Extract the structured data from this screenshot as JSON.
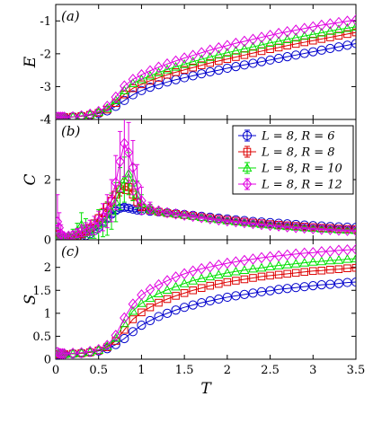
{
  "chart_data": {
    "type": "line",
    "xlabel": "T",
    "xlim": [
      0,
      3.5
    ],
    "xticks": [
      "0",
      "0.5",
      "1",
      "1.5",
      "2",
      "2.5",
      "3",
      "3.5"
    ],
    "xtick_values": [
      0,
      0.5,
      1,
      1.5,
      2,
      2.5,
      3,
      3.5
    ],
    "legend": {
      "placement": "upper right of panel (b)",
      "entries": [
        "L = 8, R = 6",
        "L = 8, R = 8",
        "L = 8, R = 10",
        "L = 8, R = 12"
      ]
    },
    "colors": [
      "#0000cc",
      "#dd0000",
      "#00e000",
      "#e000e0"
    ],
    "markers": [
      "circle",
      "square",
      "triangle",
      "diamond"
    ],
    "panels": [
      {
        "label": "(a)",
        "ylabel": "E",
        "ylim": [
          -4,
          -0.5
        ],
        "yticks": [
          "-1",
          "-2",
          "-3",
          "-4"
        ],
        "ytick_values": [
          -1,
          -2,
          -3,
          -4
        ],
        "x": [
          0.02,
          0.04,
          0.06,
          0.08,
          0.1,
          0.2,
          0.3,
          0.4,
          0.5,
          0.6,
          0.7,
          0.8,
          0.9,
          1.0,
          1.1,
          1.2,
          1.3,
          1.4,
          1.5,
          1.6,
          1.7,
          1.8,
          1.9,
          2.0,
          2.1,
          2.2,
          2.3,
          2.4,
          2.5,
          2.6,
          2.7,
          2.8,
          2.9,
          3.0,
          3.1,
          3.2,
          3.3,
          3.4,
          3.5
        ],
        "series": [
          {
            "name": "R = 6",
            "values": [
              -3.93,
              -3.93,
              -3.93,
              -3.93,
              -3.93,
              -3.92,
              -3.9,
              -3.87,
              -3.82,
              -3.74,
              -3.6,
              -3.42,
              -3.25,
              -3.12,
              -3.02,
              -2.94,
              -2.86,
              -2.79,
              -2.73,
              -2.67,
              -2.61,
              -2.55,
              -2.5,
              -2.44,
              -2.39,
              -2.34,
              -2.29,
              -2.24,
              -2.19,
              -2.14,
              -2.09,
              -2.04,
              -1.99,
              -1.94,
              -1.89,
              -1.84,
              -1.79,
              -1.74,
              -1.69
            ]
          },
          {
            "name": "R = 8",
            "values": [
              -3.93,
              -3.93,
              -3.93,
              -3.93,
              -3.93,
              -3.92,
              -3.9,
              -3.86,
              -3.8,
              -3.7,
              -3.5,
              -3.24,
              -3.05,
              -2.93,
              -2.82,
              -2.73,
              -2.64,
              -2.56,
              -2.49,
              -2.42,
              -2.35,
              -2.28,
              -2.22,
              -2.16,
              -2.1,
              -2.04,
              -1.98,
              -1.92,
              -1.86,
              -1.81,
              -1.75,
              -1.7,
              -1.65,
              -1.6,
              -1.55,
              -1.5,
              -1.45,
              -1.4,
              -1.35
            ]
          },
          {
            "name": "R = 10",
            "values": [
              -3.93,
              -3.93,
              -3.93,
              -3.93,
              -3.93,
              -3.92,
              -3.89,
              -3.85,
              -3.78,
              -3.66,
              -3.42,
              -3.12,
              -2.9,
              -2.78,
              -2.67,
              -2.57,
              -2.48,
              -2.4,
              -2.32,
              -2.24,
              -2.17,
              -2.1,
              -2.03,
              -1.97,
              -1.91,
              -1.85,
              -1.79,
              -1.73,
              -1.67,
              -1.62,
              -1.56,
              -1.51,
              -1.46,
              -1.41,
              -1.36,
              -1.31,
              -1.26,
              -1.22,
              -1.18
            ]
          },
          {
            "name": "R = 12",
            "values": [
              -3.93,
              -3.93,
              -3.93,
              -3.93,
              -3.93,
              -3.92,
              -3.89,
              -3.84,
              -3.76,
              -3.6,
              -3.32,
              -2.98,
              -2.78,
              -2.64,
              -2.52,
              -2.41,
              -2.31,
              -2.22,
              -2.13,
              -2.05,
              -1.97,
              -1.89,
              -1.82,
              -1.75,
              -1.68,
              -1.62,
              -1.56,
              -1.5,
              -1.44,
              -1.38,
              -1.33,
              -1.28,
              -1.23,
              -1.18,
              -1.13,
              -1.09,
              -1.05,
              -1.01,
              -0.97
            ]
          }
        ]
      },
      {
        "label": "(b)",
        "ylabel": "C",
        "ylim": [
          0,
          4
        ],
        "yticks": [
          "0",
          "2",
          "4"
        ],
        "ytick_values": [
          0,
          2,
          4
        ],
        "x": [
          0.02,
          0.04,
          0.06,
          0.08,
          0.1,
          0.15,
          0.2,
          0.25,
          0.3,
          0.35,
          0.4,
          0.45,
          0.5,
          0.55,
          0.6,
          0.65,
          0.7,
          0.75,
          0.8,
          0.85,
          0.9,
          0.95,
          1.0,
          1.1,
          1.2,
          1.3,
          1.4,
          1.5,
          1.6,
          1.7,
          1.8,
          1.9,
          2.0,
          2.1,
          2.2,
          2.3,
          2.4,
          2.5,
          2.6,
          2.7,
          2.8,
          2.9,
          3.0,
          3.1,
          3.2,
          3.3,
          3.4,
          3.5
        ],
        "series": [
          {
            "name": "R = 6",
            "values": [
              0.15,
              0.05,
              0.03,
              0.02,
              0.02,
              0.03,
              0.05,
              0.07,
              0.1,
              0.14,
              0.2,
              0.3,
              0.42,
              0.56,
              0.7,
              0.85,
              0.97,
              1.05,
              1.08,
              1.05,
              1.02,
              0.99,
              0.97,
              0.95,
              0.93,
              0.9,
              0.87,
              0.84,
              0.81,
              0.78,
              0.75,
              0.72,
              0.69,
              0.66,
              0.64,
              0.61,
              0.59,
              0.57,
              0.55,
              0.53,
              0.51,
              0.49,
              0.47,
              0.46,
              0.44,
              0.43,
              0.42,
              0.41
            ],
            "errors": [
              0.05,
              0.03,
              0.02,
              0.02,
              0.02,
              0.02,
              0.02,
              0.02,
              0.03,
              0.03,
              0.04,
              0.05,
              0.06,
              0.07,
              0.08,
              0.08,
              0.09,
              0.09,
              0.09,
              0.08,
              0.07,
              0.06,
              0.05,
              0.04,
              0.04,
              0.03,
              0.03,
              0.03,
              0.03,
              0.03,
              0.02,
              0.02,
              0.02,
              0.02,
              0.02,
              0.02,
              0.02,
              0.02,
              0.02,
              0.02,
              0.02,
              0.02,
              0.02,
              0.02,
              0.02,
              0.02,
              0.02,
              0.02
            ]
          },
          {
            "name": "R = 8",
            "values": [
              0.2,
              0.08,
              0.04,
              0.03,
              0.03,
              0.05,
              0.08,
              0.12,
              0.18,
              0.28,
              0.4,
              0.55,
              0.72,
              0.9,
              1.1,
              1.3,
              1.5,
              1.68,
              1.78,
              1.75,
              1.5,
              1.25,
              1.08,
              0.98,
              0.93,
              0.89,
              0.86,
              0.82,
              0.79,
              0.75,
              0.72,
              0.69,
              0.66,
              0.63,
              0.6,
              0.57,
              0.55,
              0.52,
              0.5,
              0.48,
              0.46,
              0.44,
              0.42,
              0.4,
              0.39,
              0.37,
              0.36,
              0.35
            ],
            "errors": [
              0.08,
              0.05,
              0.03,
              0.02,
              0.02,
              0.03,
              0.04,
              0.05,
              0.06,
              0.07,
              0.08,
              0.1,
              0.12,
              0.14,
              0.16,
              0.18,
              0.2,
              0.22,
              0.24,
              0.22,
              0.18,
              0.12,
              0.08,
              0.05,
              0.04,
              0.04,
              0.03,
              0.03,
              0.03,
              0.03,
              0.03,
              0.02,
              0.02,
              0.02,
              0.02,
              0.02,
              0.02,
              0.02,
              0.02,
              0.02,
              0.02,
              0.02,
              0.02,
              0.02,
              0.02,
              0.02,
              0.02,
              0.02
            ]
          },
          {
            "name": "R = 10",
            "values": [
              0.3,
              0.12,
              0.08,
              0.06,
              0.08,
              0.12,
              0.2,
              0.3,
              0.5,
              0.4,
              0.25,
              0.35,
              0.5,
              0.55,
              0.7,
              0.95,
              1.25,
              1.7,
              2.0,
              2.2,
              1.9,
              1.5,
              1.2,
              1.03,
              0.95,
              0.9,
              0.87,
              0.83,
              0.79,
              0.75,
              0.71,
              0.68,
              0.64,
              0.61,
              0.58,
              0.55,
              0.52,
              0.5,
              0.47,
              0.45,
              0.43,
              0.41,
              0.39,
              0.37,
              0.36,
              0.34,
              0.33,
              0.32
            ],
            "errors": [
              0.25,
              0.1,
              0.06,
              0.05,
              0.06,
              0.1,
              0.15,
              0.25,
              0.4,
              0.3,
              0.2,
              0.3,
              0.5,
              0.45,
              0.55,
              0.6,
              0.65,
              0.7,
              0.75,
              0.7,
              0.6,
              0.45,
              0.3,
              0.15,
              0.08,
              0.05,
              0.04,
              0.04,
              0.03,
              0.03,
              0.03,
              0.03,
              0.02,
              0.02,
              0.02,
              0.02,
              0.02,
              0.02,
              0.02,
              0.02,
              0.02,
              0.02,
              0.02,
              0.02,
              0.02,
              0.02,
              0.02,
              0.02
            ]
          },
          {
            "name": "R = 12",
            "values": [
              0.6,
              0.4,
              0.2,
              0.12,
              0.1,
              0.12,
              0.15,
              0.22,
              0.3,
              0.35,
              0.4,
              0.48,
              0.6,
              0.75,
              0.95,
              1.3,
              1.9,
              2.6,
              3.2,
              2.9,
              2.4,
              1.8,
              1.3,
              1.05,
              0.96,
              0.9,
              0.86,
              0.82,
              0.78,
              0.74,
              0.7,
              0.66,
              0.63,
              0.6,
              0.57,
              0.54,
              0.51,
              0.48,
              0.46,
              0.43,
              0.41,
              0.39,
              0.37,
              0.35,
              0.34,
              0.32,
              0.31,
              0.3
            ],
            "errors": [
              0.9,
              0.5,
              0.3,
              0.15,
              0.1,
              0.1,
              0.12,
              0.15,
              0.2,
              0.22,
              0.25,
              0.3,
              0.35,
              0.45,
              0.55,
              0.7,
              0.9,
              1.0,
              1.1,
              1.0,
              0.9,
              0.7,
              0.45,
              0.2,
              0.1,
              0.06,
              0.05,
              0.04,
              0.04,
              0.03,
              0.03,
              0.03,
              0.03,
              0.02,
              0.02,
              0.02,
              0.02,
              0.02,
              0.02,
              0.02,
              0.02,
              0.02,
              0.02,
              0.02,
              0.02,
              0.02,
              0.02,
              0.02
            ]
          }
        ]
      },
      {
        "label": "(c)",
        "ylabel": "S",
        "ylim": [
          0,
          2.6
        ],
        "yticks": [
          "0",
          "0.5",
          "1",
          "1.5",
          "2"
        ],
        "ytick_values": [
          0,
          0.5,
          1,
          1.5,
          2
        ],
        "x": [
          0.02,
          0.04,
          0.06,
          0.08,
          0.1,
          0.2,
          0.3,
          0.4,
          0.5,
          0.6,
          0.7,
          0.8,
          0.9,
          1.0,
          1.1,
          1.2,
          1.3,
          1.4,
          1.5,
          1.6,
          1.7,
          1.8,
          1.9,
          2.0,
          2.1,
          2.2,
          2.3,
          2.4,
          2.5,
          2.6,
          2.7,
          2.8,
          2.9,
          3.0,
          3.1,
          3.2,
          3.3,
          3.4,
          3.5
        ],
        "series": [
          {
            "name": "R = 6",
            "values": [
              0.1,
              0.11,
              0.11,
              0.11,
              0.11,
              0.12,
              0.13,
              0.15,
              0.18,
              0.23,
              0.32,
              0.45,
              0.6,
              0.74,
              0.84,
              0.93,
              1.0,
              1.07,
              1.13,
              1.18,
              1.23,
              1.27,
              1.31,
              1.35,
              1.38,
              1.41,
              1.44,
              1.47,
              1.49,
              1.52,
              1.54,
              1.56,
              1.58,
              1.6,
              1.62,
              1.63,
              1.65,
              1.67,
              1.68
            ]
          },
          {
            "name": "R = 8",
            "values": [
              0.1,
              0.11,
              0.11,
              0.11,
              0.11,
              0.12,
              0.13,
              0.15,
              0.19,
              0.26,
              0.4,
              0.64,
              0.87,
              1.02,
              1.13,
              1.23,
              1.31,
              1.38,
              1.44,
              1.5,
              1.55,
              1.6,
              1.64,
              1.68,
              1.71,
              1.74,
              1.77,
              1.8,
              1.82,
              1.84,
              1.86,
              1.88,
              1.9,
              1.92,
              1.93,
              1.95,
              1.96,
              1.98,
              1.99
            ]
          },
          {
            "name": "R = 10",
            "values": [
              0.12,
              0.12,
              0.12,
              0.11,
              0.11,
              0.12,
              0.14,
              0.16,
              0.2,
              0.28,
              0.46,
              0.78,
              1.05,
              1.22,
              1.33,
              1.43,
              1.51,
              1.58,
              1.65,
              1.71,
              1.76,
              1.8,
              1.84,
              1.88,
              1.91,
              1.94,
              1.97,
              1.99,
              2.02,
              2.04,
              2.06,
              2.08,
              2.1,
              2.12,
              2.13,
              2.15,
              2.16,
              2.18,
              2.19
            ]
          },
          {
            "name": "R = 12",
            "values": [
              0.15,
              0.13,
              0.12,
              0.12,
              0.12,
              0.13,
              0.14,
              0.17,
              0.21,
              0.3,
              0.52,
              0.9,
              1.2,
              1.4,
              1.52,
              1.62,
              1.71,
              1.79,
              1.86,
              1.92,
              1.97,
              2.01,
              2.05,
              2.09,
              2.12,
              2.15,
              2.18,
              2.21,
              2.23,
              2.25,
              2.27,
              2.29,
              2.31,
              2.32,
              2.34,
              2.35,
              2.37,
              2.38,
              2.39
            ]
          }
        ]
      }
    ]
  }
}
